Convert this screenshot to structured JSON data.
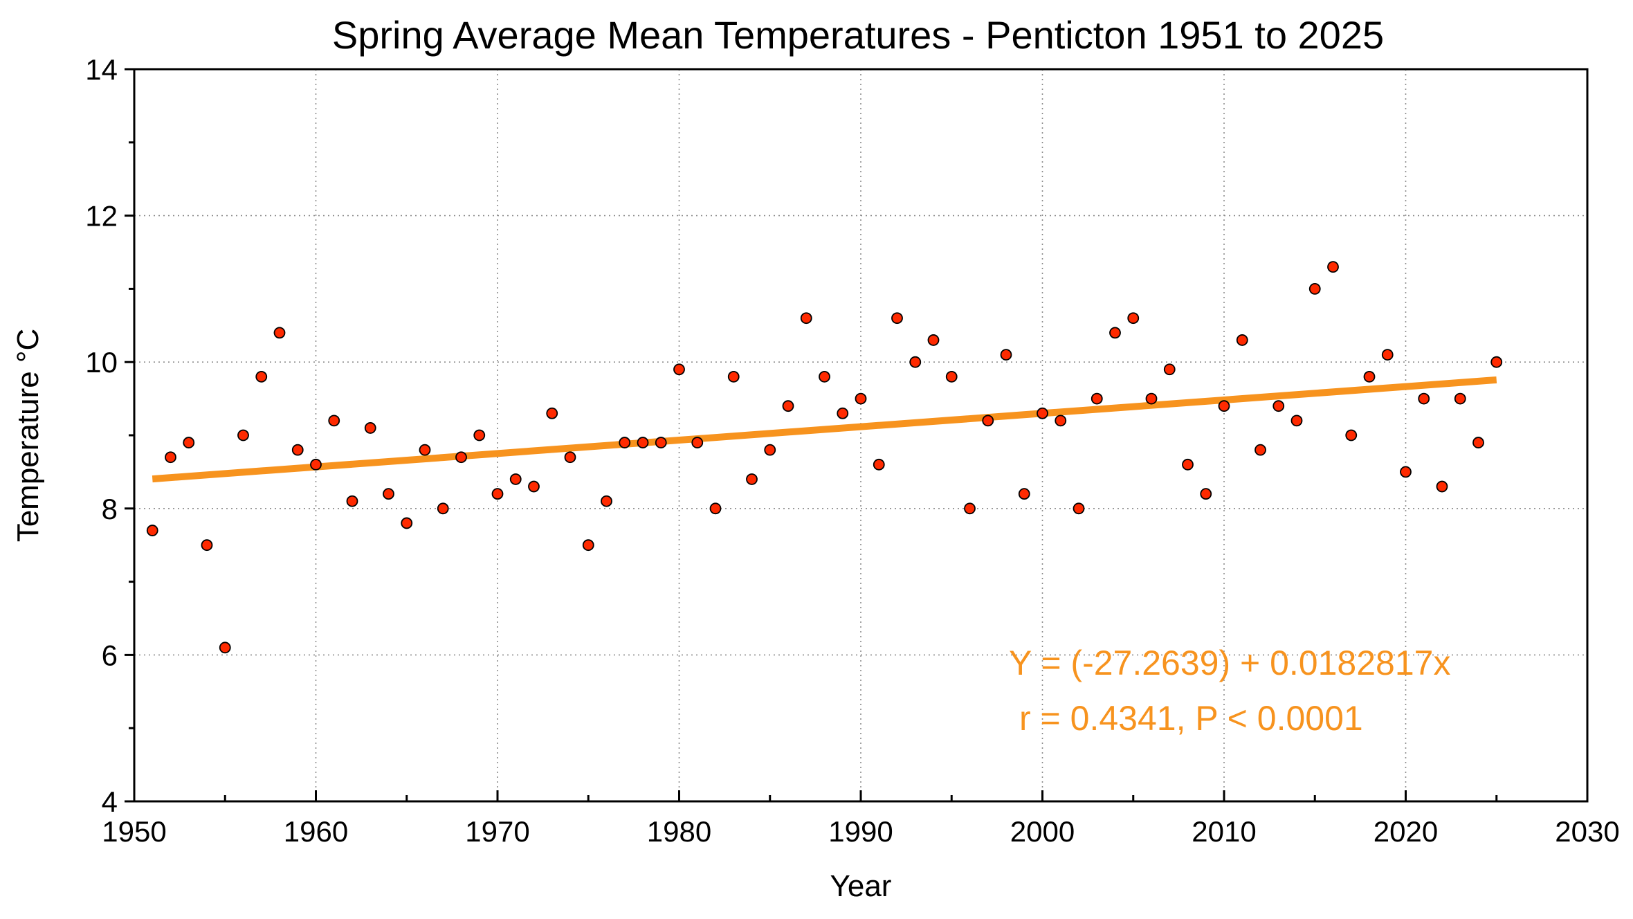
{
  "colors": {
    "point_fill": "#ff2a00",
    "point_stroke": "#000000",
    "trend": "#f7931e",
    "annotation": "#f7931e",
    "grid": "#8c8c8c",
    "axis": "#000000"
  },
  "chart_data": {
    "type": "scatter",
    "title": "Spring Average Mean Temperatures - Penticton 1951 to 2025",
    "xlabel": "Year",
    "ylabel": "Temperature °C",
    "xlim": [
      1950,
      2030
    ],
    "ylim": [
      4,
      14
    ],
    "xticks": [
      "1950",
      "1960",
      "1970",
      "1980",
      "1990",
      "2000",
      "2010",
      "2020",
      "2030"
    ],
    "yticks": [
      "4",
      "6",
      "8",
      "10",
      "12",
      "14"
    ],
    "grid": true,
    "series": [
      {
        "x": [
          1951,
          1952,
          1953,
          1954,
          1955,
          1956,
          1957,
          1958,
          1959,
          1960,
          1961,
          1962,
          1963,
          1964,
          1965,
          1966,
          1967,
          1968,
          1969,
          1970,
          1971,
          1972,
          1973,
          1974,
          1975,
          1976,
          1977,
          1978,
          1979,
          1980,
          1981,
          1982,
          1983,
          1984,
          1985,
          1986,
          1987,
          1988,
          1989,
          1990,
          1991,
          1992,
          1993,
          1994,
          1995,
          1996,
          1997,
          1998,
          1999,
          2000,
          2001,
          2002,
          2003,
          2004,
          2005,
          2006,
          2007,
          2008,
          2009,
          2010,
          2011,
          2012,
          2013,
          2014,
          2015,
          2016,
          2017,
          2018,
          2019,
          2020,
          2021,
          2022,
          2023,
          2024,
          2025
        ],
        "y": [
          7.7,
          8.7,
          8.9,
          7.5,
          6.1,
          9.0,
          9.8,
          10.4,
          8.8,
          8.6,
          9.2,
          8.1,
          9.1,
          8.2,
          7.8,
          8.8,
          8.0,
          8.7,
          9.0,
          8.2,
          8.4,
          8.3,
          9.3,
          8.7,
          7.5,
          8.1,
          8.9,
          8.9,
          8.9,
          9.9,
          8.9,
          8.0,
          9.8,
          8.4,
          8.8,
          9.4,
          10.6,
          9.8,
          9.3,
          9.5,
          8.6,
          10.6,
          10.0,
          10.3,
          9.8,
          8.0,
          9.2,
          10.1,
          8.2,
          9.3,
          9.2,
          8.0,
          9.5,
          10.4,
          10.6,
          9.5,
          9.9,
          8.6,
          8.2,
          9.4,
          10.3,
          8.8,
          9.4,
          9.2,
          11.0,
          11.3,
          9.0,
          9.8,
          10.1,
          8.5,
          9.5,
          8.3,
          9.5,
          8.9,
          10.0
        ]
      }
    ],
    "trendline": {
      "intercept": -27.2639,
      "slope": 0.0182817,
      "x_range": [
        1951,
        2025
      ]
    },
    "annotations": {
      "equation": "Y = (-27.2639) + 0.0182817x",
      "stats": "r = 0.4341, P < 0.0001"
    }
  }
}
